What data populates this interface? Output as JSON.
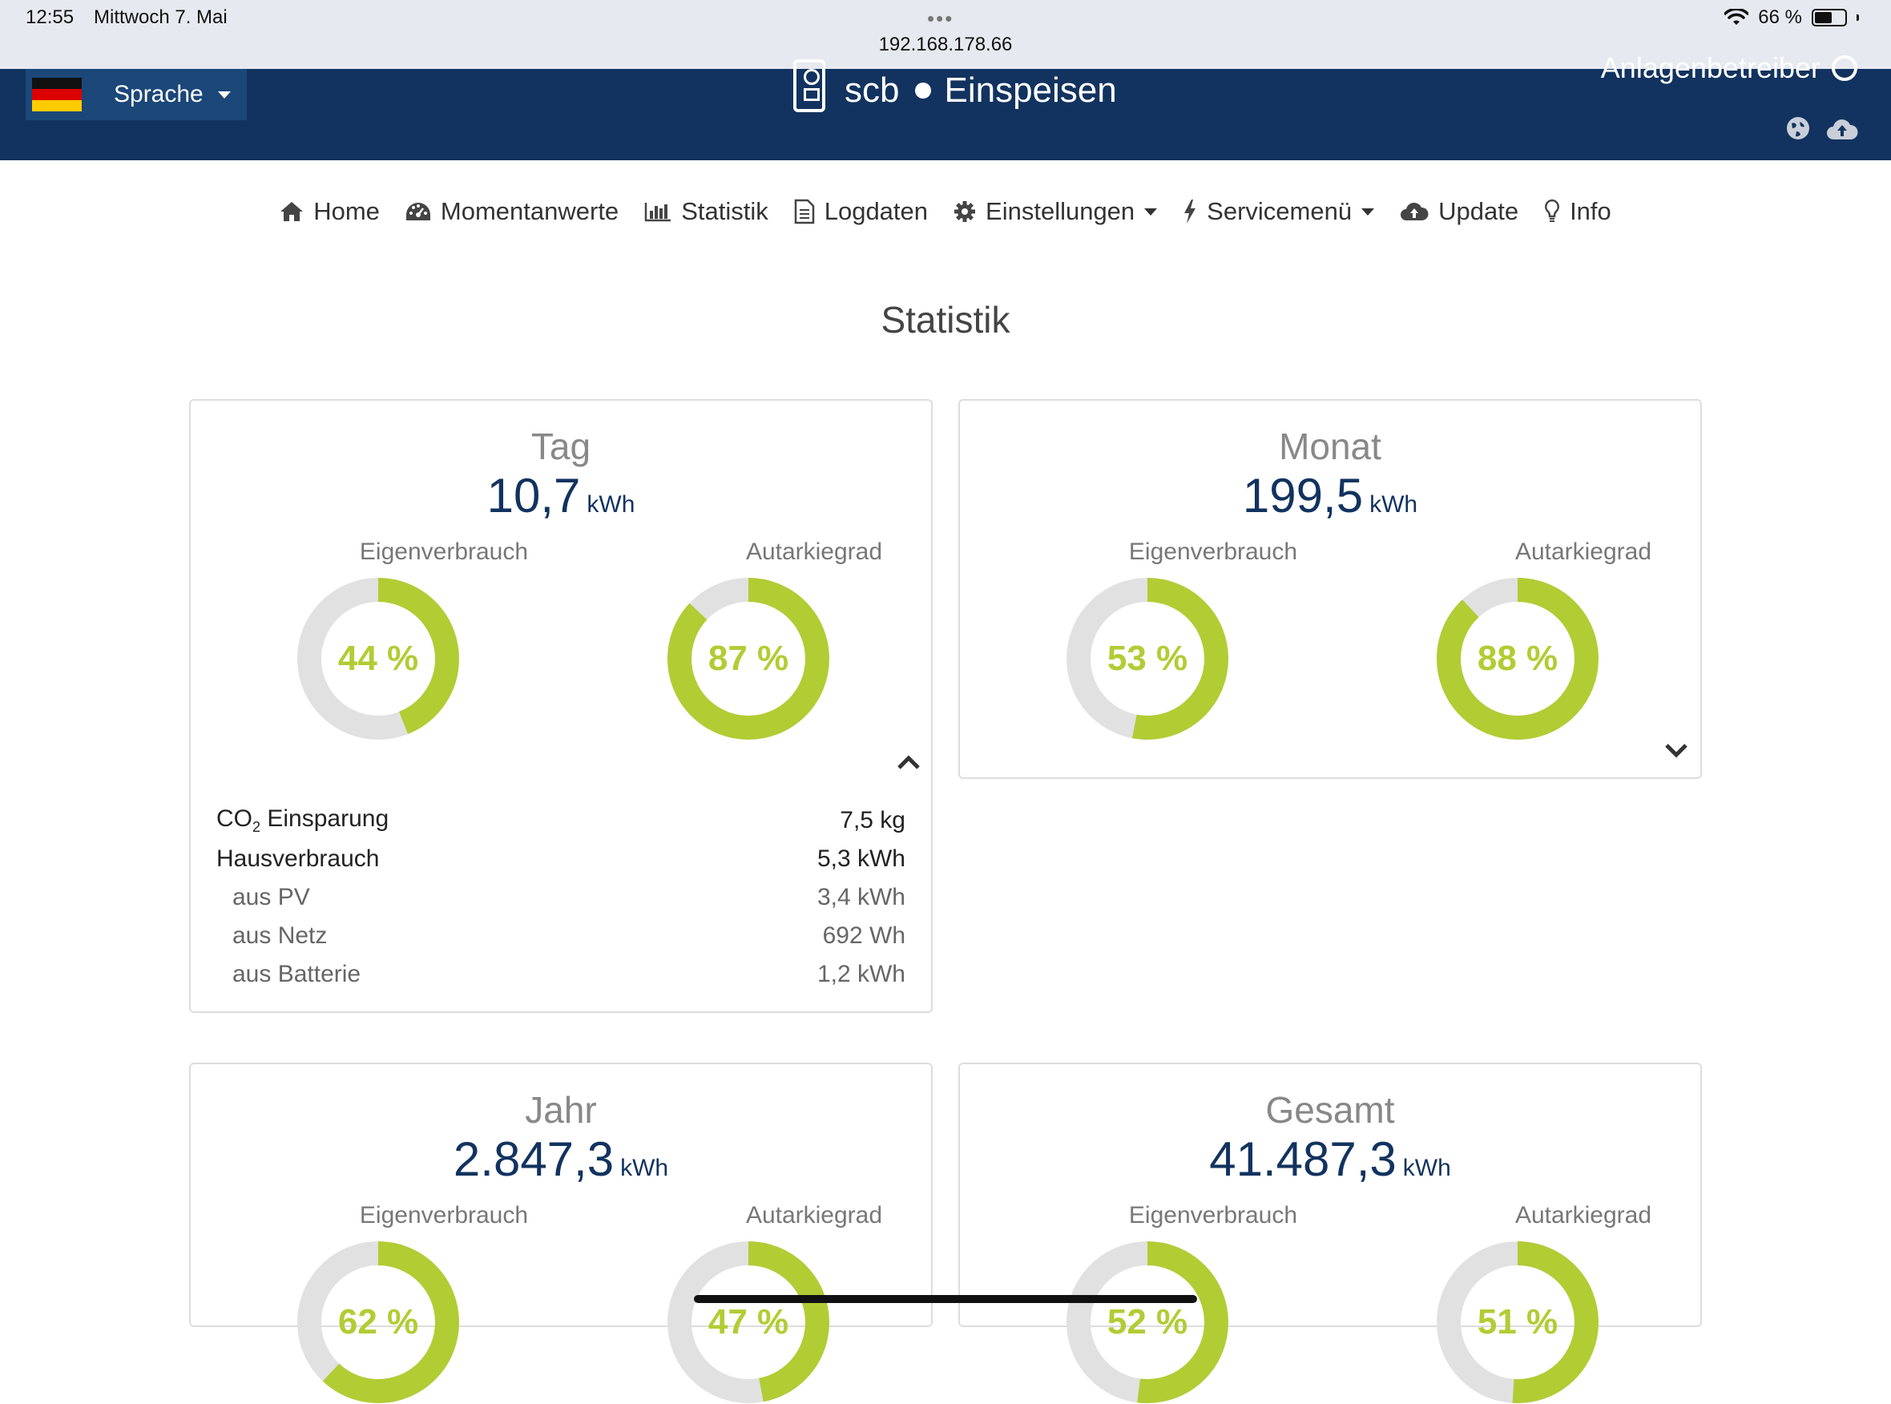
{
  "statusbar": {
    "time": "12:55",
    "date": "Mittwoch 7. Mai",
    "dots": "•••",
    "url": "192.168.178.66",
    "battery": "66 %",
    "battery_level": 0.66
  },
  "header": {
    "language_label": "Sprache",
    "brand": "scb",
    "mode": "Einspeisen",
    "operator": "Anlagenbetreiber",
    "colors": {
      "bar": "#12335f",
      "lang_button": "#1b4779"
    }
  },
  "nav": {
    "home": "Home",
    "momentanwerte": "Momentanwerte",
    "statistik": "Statistik",
    "logdaten": "Logdaten",
    "einstellungen": "Einstellungen",
    "servicemenue": "Servicemenü",
    "update": "Update",
    "info": "Info"
  },
  "page_title": "Statistik",
  "labels": {
    "eigenverbrauch": "Eigenverbrauch",
    "autarkiegrad": "Autarkiegrad"
  },
  "accent_color": "#b2cc34",
  "panels": {
    "tag": {
      "title": "Tag",
      "total": "10,7",
      "unit": "kWh",
      "eigen_text": "44 %",
      "eigen": 0.44,
      "autark_text": "87 %",
      "autark": 0.87,
      "details": {
        "co2_label": "Einsparung",
        "co2_value": "7,5 kg",
        "haus_label": "Hausverbrauch",
        "haus_value": "5,3 kWh",
        "pv_label": "aus PV",
        "pv_value": "3,4 kWh",
        "netz_label": "aus Netz",
        "netz_value": "692 Wh",
        "batt_label": "aus Batterie",
        "batt_value": "1,2 kWh"
      }
    },
    "monat": {
      "title": "Monat",
      "total": "199,5",
      "unit": "kWh",
      "eigen_text": "53 %",
      "eigen": 0.53,
      "autark_text": "88 %",
      "autark": 0.88
    },
    "jahr": {
      "title": "Jahr",
      "total": "2.847,3",
      "unit": "kWh",
      "eigen_text": "62 %",
      "eigen": 0.62,
      "autark_text": "47 %",
      "autark": 0.47
    },
    "gesamt": {
      "title": "Gesamt",
      "total": "41.487,3",
      "unit": "kWh",
      "eigen_text": "52 %",
      "eigen": 0.52,
      "autark_text": "51 %",
      "autark": 0.51
    }
  }
}
